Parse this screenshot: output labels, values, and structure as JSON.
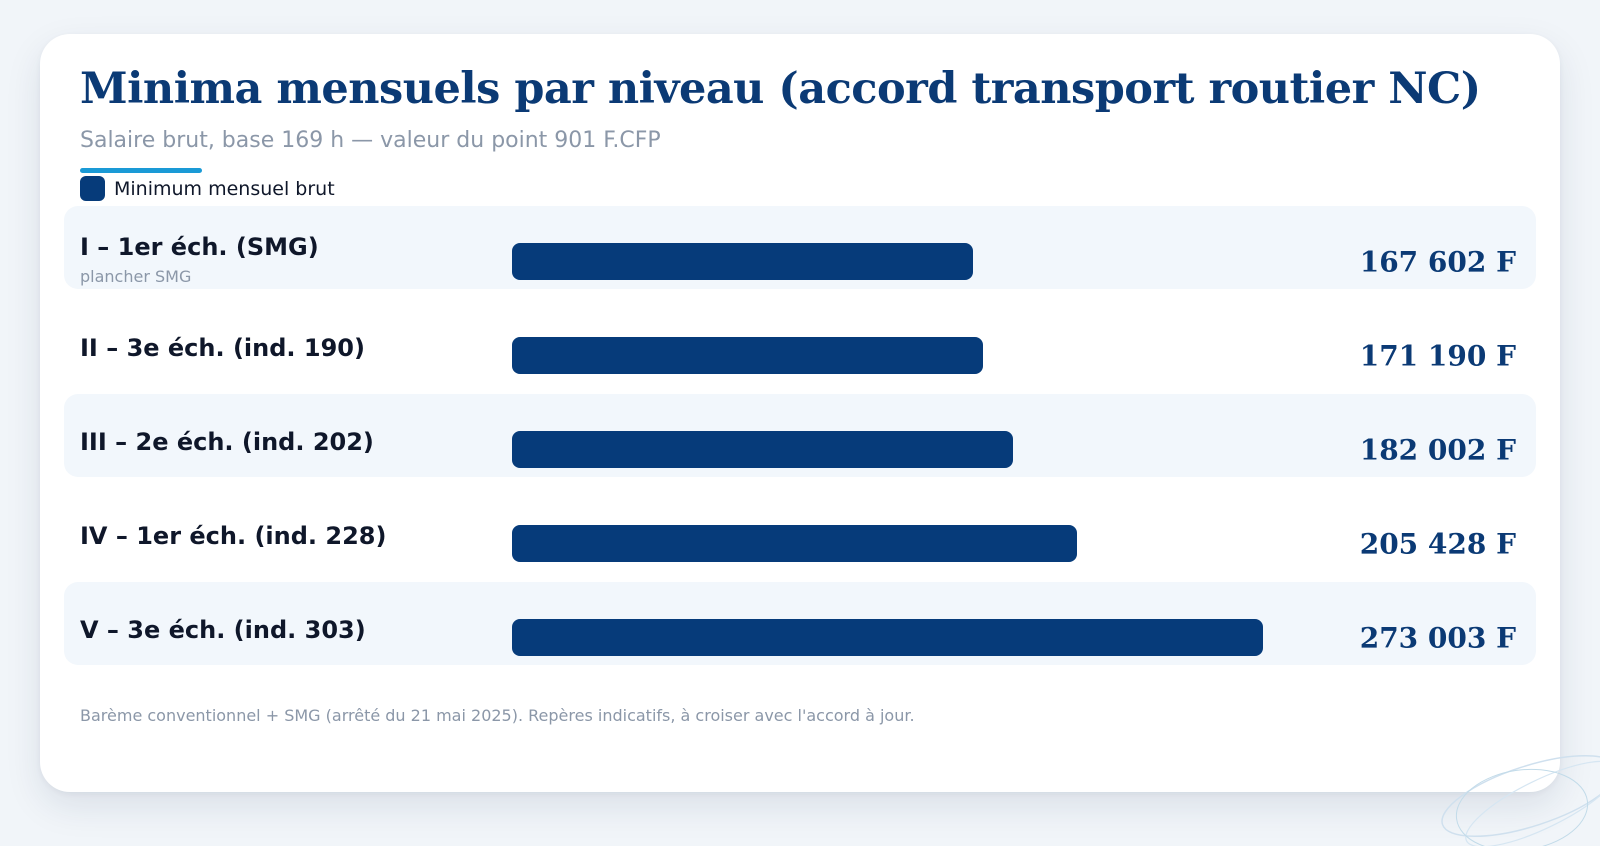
{
  "title": "Minima mensuels par niveau (accord transport routier NC)",
  "subtitle": "Salaire brut, base 169 h — valeur du point 901 F.CFP",
  "legend": {
    "label": "Minimum mensuel brut",
    "color": "#063b7a"
  },
  "footnote": "Barème conventionnel + SMG (arrêté du 21 mai 2025). Repères indicatifs, à croiser avec l'accord à jour.",
  "colors": {
    "accent": "#1a9ad6",
    "bar": "#063b7a",
    "title": "#0b3a75"
  },
  "rows": [
    {
      "label": "I – 1er éch. (SMG)",
      "note": "plancher SMG",
      "value_label": "167 602 F"
    },
    {
      "label": "II – 3e éch. (ind. 190)",
      "note": "",
      "value_label": "171 190 F"
    },
    {
      "label": "III – 2e éch. (ind. 202)",
      "note": "",
      "value_label": "182 002 F"
    },
    {
      "label": "IV – 1er éch. (ind. 228)",
      "note": "",
      "value_label": "205 428 F"
    },
    {
      "label": "V – 3e éch. (ind. 303)",
      "note": "",
      "value_label": "273 003 F"
    }
  ],
  "chart_data": {
    "type": "bar",
    "orientation": "horizontal",
    "title": "Minima mensuels par niveau (accord transport routier NC)",
    "subtitle": "Salaire brut, base 169 h — valeur du point 901 F.CFP",
    "categories": [
      "I – 1er éch. (SMG)",
      "II – 3e éch. (ind. 190)",
      "III – 2e éch. (ind. 202)",
      "IV – 1er éch. (ind. 228)",
      "V – 3e éch. (ind. 303)"
    ],
    "series": [
      {
        "name": "Minimum mensuel brut",
        "values": [
          167602,
          171190,
          182002,
          205428,
          273003
        ]
      }
    ],
    "xlim": [
      0,
      273003
    ],
    "grid": false,
    "legend_position": "top-left"
  }
}
